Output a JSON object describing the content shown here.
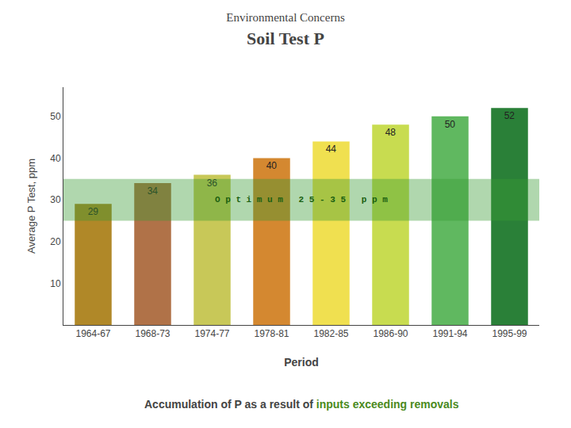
{
  "chart_data": {
    "type": "bar",
    "subtitle": "Environmental Concerns",
    "title": "Soil Test P",
    "categories": [
      "1964-67",
      "1968-73",
      "1974-77",
      "1978-81",
      "1982-85",
      "1986-90",
      "1991-94",
      "1995-99"
    ],
    "values": [
      29,
      34,
      36,
      40,
      44,
      48,
      50,
      52
    ],
    "colors": [
      "#b08828",
      "#b07248",
      "#c8c858",
      "#d48830",
      "#f0e050",
      "#c8dc50",
      "#60b860",
      "#2a8038"
    ],
    "xlabel": "Period",
    "ylabel": "Average P Test, ppm",
    "ylim": [
      0,
      57
    ],
    "yticks": [
      10,
      20,
      30,
      40,
      50
    ],
    "grid": false,
    "data_labels": true,
    "optimum_band": {
      "range": [
        25,
        35
      ],
      "label": "O p t i m u m   2 5 - 3 5   p p m",
      "color": "#3a9a35"
    },
    "annotations": [
      "Accumulation of P as a result of",
      "inputs exceeding removals"
    ]
  }
}
